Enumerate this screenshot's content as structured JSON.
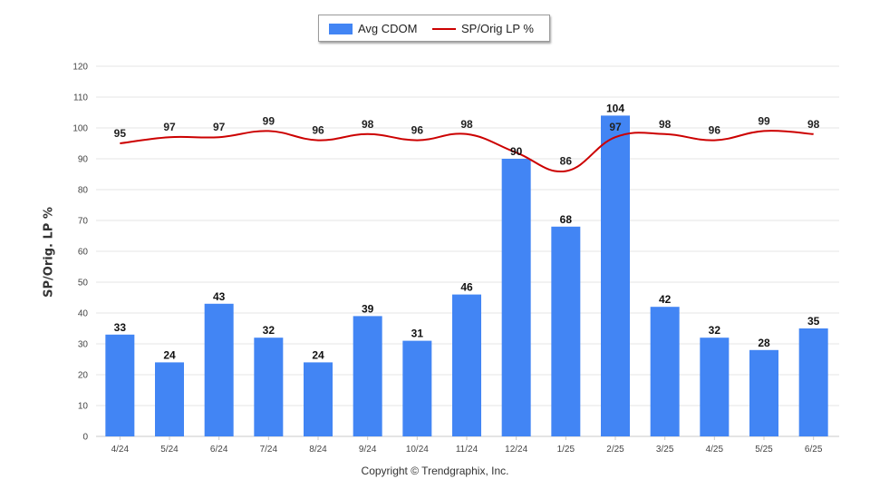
{
  "legend": {
    "bar_label": "Avg CDOM",
    "line_label": "SP/Orig LP %"
  },
  "footer": {
    "copyright": "Copyright © Trendgraphix, Inc."
  },
  "colors": {
    "bar": "#4285f4",
    "line": "#cc0000",
    "grid": "#e6e6e6"
  },
  "chart_data": {
    "type": "bar",
    "categories": [
      "4/24",
      "5/24",
      "6/24",
      "7/24",
      "8/24",
      "9/24",
      "10/24",
      "11/24",
      "12/24",
      "1/25",
      "2/25",
      "3/25",
      "4/25",
      "5/25",
      "6/25"
    ],
    "series": [
      {
        "name": "Avg CDOM",
        "type": "bar",
        "values": [
          33,
          24,
          43,
          32,
          24,
          39,
          31,
          46,
          90,
          68,
          104,
          42,
          32,
          28,
          35
        ]
      },
      {
        "name": "SP/Orig LP %",
        "type": "line",
        "values": [
          95,
          97,
          97,
          99,
          96,
          98,
          96,
          98,
          null,
          86,
          97,
          98,
          96,
          99,
          98
        ]
      }
    ],
    "line_data_labels": [
      "95",
      "97",
      "97",
      "99",
      "96",
      "98",
      "96",
      "98",
      "",
      "86",
      "97",
      "98",
      "96",
      "99",
      "98"
    ],
    "title": "",
    "xlabel": "",
    "ylabel": "SP/Orig. LP %",
    "ylim": [
      0,
      120
    ],
    "yticks": [
      0,
      10,
      20,
      30,
      40,
      50,
      60,
      70,
      80,
      90,
      100,
      110,
      120
    ],
    "grid": true,
    "legend_position": "top-center"
  }
}
